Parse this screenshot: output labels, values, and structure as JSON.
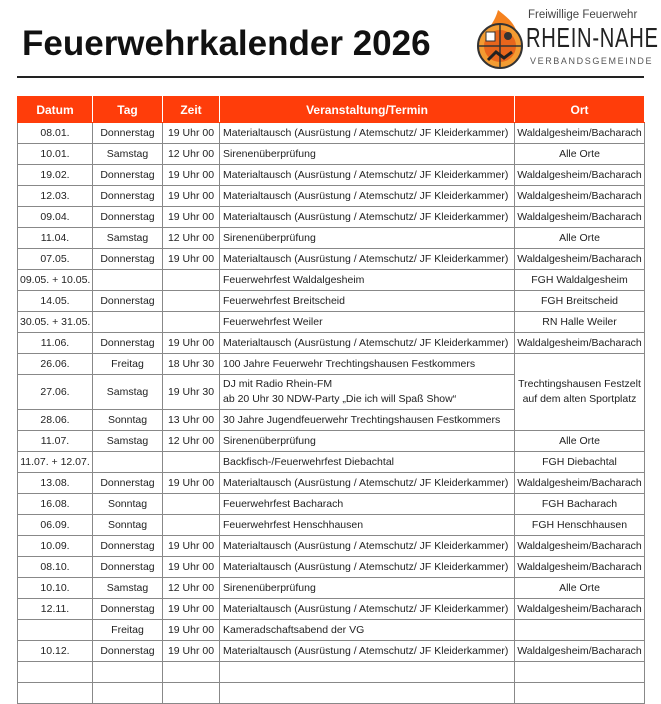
{
  "header": {
    "title": "Feuerwehrkalender 2026",
    "logo": {
      "line1": "Freiwillige Feuerwehr",
      "line2": "RHEIN-NAHE",
      "line3": "VERBANDSGEMEINDE"
    }
  },
  "colors": {
    "header_bg": "#ff3d0a",
    "flame": "#f5821f"
  },
  "table": {
    "columns": [
      "Datum",
      "Tag",
      "Zeit",
      "Veranstaltung/Termin",
      "Ort"
    ],
    "rows": [
      [
        "08.01.",
        "Donnerstag",
        "19 Uhr 00",
        "Materialtausch (Ausrüstung / Atemschutz/ JF Kleiderkammer)",
        "Waldalgesheim/Bacharach"
      ],
      [
        "10.01.",
        "Samstag",
        "12 Uhr 00",
        "Sirenenüberprüfung",
        "Alle Orte"
      ],
      [
        "19.02.",
        "Donnerstag",
        "19 Uhr 00",
        "Materialtausch (Ausrüstung / Atemschutz/ JF Kleiderkammer)",
        "Waldalgesheim/Bacharach"
      ],
      [
        "12.03.",
        "Donnerstag",
        "19 Uhr 00",
        "Materialtausch (Ausrüstung / Atemschutz/ JF Kleiderkammer)",
        "Waldalgesheim/Bacharach"
      ],
      [
        "09.04.",
        "Donnerstag",
        "19 Uhr 00",
        "Materialtausch (Ausrüstung / Atemschutz/ JF Kleiderkammer)",
        "Waldalgesheim/Bacharach"
      ],
      [
        "11.04.",
        "Samstag",
        "12 Uhr 00",
        "Sirenenüberprüfung",
        "Alle Orte"
      ],
      [
        "07.05.",
        "Donnerstag",
        "19 Uhr 00",
        "Materialtausch (Ausrüstung / Atemschutz/ JF Kleiderkammer)",
        "Waldalgesheim/Bacharach"
      ],
      [
        "09.05. + 10.05.",
        "",
        "",
        "Feuerwehrfest Waldalgesheim",
        "FGH Waldalgesheim"
      ],
      [
        "14.05.",
        "Donnerstag",
        "",
        "Feuerwehrfest Breitscheid",
        "FGH Breitscheid"
      ],
      [
        "30.05. + 31.05.",
        "",
        "",
        "Feuerwehrfest Weiler",
        "RN Halle Weiler"
      ],
      [
        "11.06.",
        "Donnerstag",
        "19 Uhr 00",
        "Materialtausch (Ausrüstung / Atemschutz/ JF Kleiderkammer)",
        "Waldalgesheim/Bacharach"
      ],
      [
        "26.06.",
        "Freitag",
        "18 Uhr 30",
        "100 Jahre Feuerwehr Trechtingshausen Festkommers",
        "Trechtingshausen Festzelt auf dem alten Sportplatz"
      ],
      [
        "27.06.",
        "Samstag",
        "19 Uhr 30",
        "DJ mit Radio Rhein-FM\nab 20 Uhr 30 NDW-Party „Die ich will Spaß Show“",
        null
      ],
      [
        "28.06.",
        "Sonntag",
        "13 Uhr 00",
        "30 Jahre Jugendfeuerwehr Trechtingshausen Festkommers",
        null
      ],
      [
        "11.07.",
        "Samstag",
        "12 Uhr 00",
        "Sirenenüberprüfung",
        "Alle Orte"
      ],
      [
        "11.07. + 12.07.",
        "",
        "",
        "Backfisch-/Feuerwehrfest Diebachtal",
        "FGH Diebachtal"
      ],
      [
        "13.08.",
        "Donnerstag",
        "19 Uhr 00",
        "Materialtausch (Ausrüstung / Atemschutz/ JF Kleiderkammer)",
        "Waldalgesheim/Bacharach"
      ],
      [
        "16.08.",
        "Sonntag",
        "",
        "Feuerwehrfest Bacharach",
        "FGH Bacharach"
      ],
      [
        "06.09.",
        "Sonntag",
        "",
        "Feuerwehrfest Henschhausen",
        "FGH Henschhausen"
      ],
      [
        "10.09.",
        "Donnerstag",
        "19 Uhr 00",
        "Materialtausch (Ausrüstung / Atemschutz/ JF Kleiderkammer)",
        "Waldalgesheim/Bacharach"
      ],
      [
        "08.10.",
        "Donnerstag",
        "19 Uhr 00",
        "Materialtausch (Ausrüstung / Atemschutz/ JF Kleiderkammer)",
        "Waldalgesheim/Bacharach"
      ],
      [
        "10.10.",
        "Samstag",
        "12 Uhr 00",
        "Sirenenüberprüfung",
        "Alle Orte"
      ],
      [
        "12.11.",
        "Donnerstag",
        "19 Uhr 00",
        "Materialtausch (Ausrüstung / Atemschutz/ JF Kleiderkammer)",
        "Waldalgesheim/Bacharach"
      ],
      [
        "",
        "Freitag",
        "19 Uhr 00",
        "Kameradschaftsabend der VG",
        ""
      ],
      [
        "10.12.",
        "Donnerstag",
        "19 Uhr 00",
        "Materialtausch (Ausrüstung / Atemschutz/ JF Kleiderkammer)",
        "Waldalgesheim/Bacharach"
      ],
      [
        "",
        "",
        "",
        "",
        ""
      ],
      [
        "",
        "",
        "",
        "",
        ""
      ]
    ]
  }
}
